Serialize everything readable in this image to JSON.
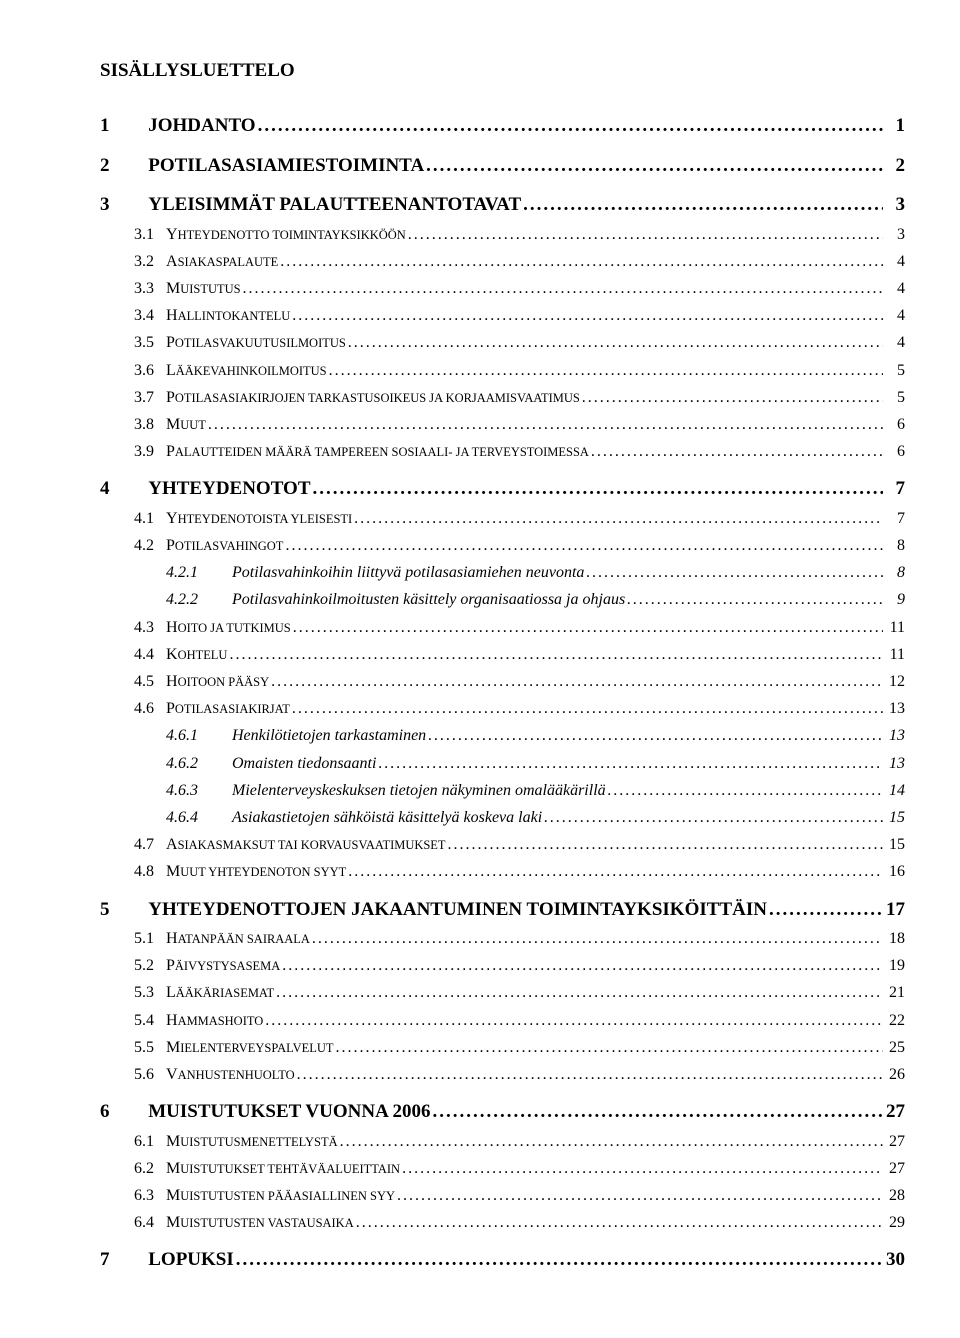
{
  "doc": {
    "title": "SISÄLLYSLUETTELO",
    "font_family": "Times New Roman",
    "text_color": "#000000",
    "background_color": "#ffffff",
    "title_fontsize": 19,
    "lvl1_fontsize": 19,
    "lvl2_fontsize": 16,
    "lvl3_fontsize": 16
  },
  "toc": [
    {
      "level": 1,
      "num": "1",
      "text": "JOHDANTO",
      "page": "1"
    },
    {
      "level": 1,
      "num": "2",
      "text": "POTILASASIAMIESTOIMINTA",
      "page": "2"
    },
    {
      "level": 1,
      "num": "3",
      "text": "YLEISIMMÄT PALAUTTEENANTOTAVAT",
      "page": "3"
    },
    {
      "level": 2,
      "num": "3.1",
      "text": "Yhteydenotto toimintayksikköön",
      "page": "3"
    },
    {
      "level": 2,
      "num": "3.2",
      "text": "Asiakaspalaute",
      "page": "4"
    },
    {
      "level": 2,
      "num": "3.3",
      "text": "Muistutus",
      "page": "4"
    },
    {
      "level": 2,
      "num": "3.4",
      "text": "Hallintokantelu",
      "page": "4"
    },
    {
      "level": 2,
      "num": "3.5",
      "text": "Potilasvakuutusilmoitus",
      "page": "4"
    },
    {
      "level": 2,
      "num": "3.6",
      "text": "Lääkevahinkoilmoitus",
      "page": "5"
    },
    {
      "level": 2,
      "num": "3.7",
      "text": "Potilasasiakirjojen tarkastusoikeus ja korjaamisvaatimus",
      "page": "5"
    },
    {
      "level": 2,
      "num": "3.8",
      "text": "Muut",
      "page": "6"
    },
    {
      "level": 2,
      "num": "3.9",
      "text": "Palautteiden määrä Tampereen sosiaali- ja terveystoimessa",
      "page": "6"
    },
    {
      "level": 1,
      "num": "4",
      "text": "YHTEYDENOTOT",
      "page": "7"
    },
    {
      "level": 2,
      "num": "4.1",
      "text": "Yhteydenotoista yleisesti",
      "page": "7"
    },
    {
      "level": 2,
      "num": "4.2",
      "text": "Potilasvahingot",
      "page": "8"
    },
    {
      "level": 3,
      "num": "4.2.1",
      "text": "Potilasvahinkoihin liittyvä potilasasiamiehen neuvonta",
      "page": "8"
    },
    {
      "level": 3,
      "num": "4.2.2",
      "text": "Potilasvahinkoilmoitusten käsittely organisaatiossa ja ohjaus",
      "page": "9"
    },
    {
      "level": 2,
      "num": "4.3",
      "text": "Hoito ja tutkimus",
      "page": "11"
    },
    {
      "level": 2,
      "num": "4.4",
      "text": "Kohtelu",
      "page": "11"
    },
    {
      "level": 2,
      "num": "4.5",
      "text": "Hoitoon pääsy",
      "page": "12"
    },
    {
      "level": 2,
      "num": "4.6",
      "text": "Potilasasiakirjat",
      "page": "13"
    },
    {
      "level": 3,
      "num": "4.6.1",
      "text": "Henkilötietojen tarkastaminen",
      "page": "13"
    },
    {
      "level": 3,
      "num": "4.6.2",
      "text": "Omaisten tiedonsaanti",
      "page": "13"
    },
    {
      "level": 3,
      "num": "4.6.3",
      "text": "Mielenterveyskeskuksen tietojen näkyminen omalääkärillä",
      "page": "14"
    },
    {
      "level": 3,
      "num": "4.6.4",
      "text": "Asiakastietojen sähköistä käsittelyä koskeva laki",
      "page": "15"
    },
    {
      "level": 2,
      "num": "4.7",
      "text": "Asiakasmaksut tai korvausvaatimukset",
      "page": "15"
    },
    {
      "level": 2,
      "num": "4.8",
      "text": "Muut yhteydenoton syyt",
      "page": "16"
    },
    {
      "level": 1,
      "num": "5",
      "text": "YHTEYDENOTTOJEN JAKAANTUMINEN TOIMINTAYKSIKÖITTÄIN",
      "page": "17"
    },
    {
      "level": 2,
      "num": "5.1",
      "text": "Hatanpään sairaala",
      "page": "18"
    },
    {
      "level": 2,
      "num": "5.2",
      "text": "Päivystysasema",
      "page": "19"
    },
    {
      "level": 2,
      "num": "5.3",
      "text": "Lääkäriasemat",
      "page": "21"
    },
    {
      "level": 2,
      "num": "5.4",
      "text": "Hammashoito",
      "page": "22"
    },
    {
      "level": 2,
      "num": "5.5",
      "text": "Mielenterveyspalvelut",
      "page": "25"
    },
    {
      "level": 2,
      "num": "5.6",
      "text": "Vanhustenhuolto",
      "page": "26"
    },
    {
      "level": 1,
      "num": "6",
      "text": "MUISTUTUKSET VUONNA 2006",
      "page": "27"
    },
    {
      "level": 2,
      "num": "6.1",
      "text": "Muistutusmenettelystä",
      "page": "27"
    },
    {
      "level": 2,
      "num": "6.2",
      "text": "Muistutukset tehtäväalueittain",
      "page": "27"
    },
    {
      "level": 2,
      "num": "6.3",
      "text": "Muistutusten pääasiallinen syy",
      "page": "28"
    },
    {
      "level": 2,
      "num": "6.4",
      "text": "Muistutusten vastausaika",
      "page": "29"
    },
    {
      "level": 1,
      "num": "7",
      "text": "LOPUKSI",
      "page": "30"
    }
  ]
}
